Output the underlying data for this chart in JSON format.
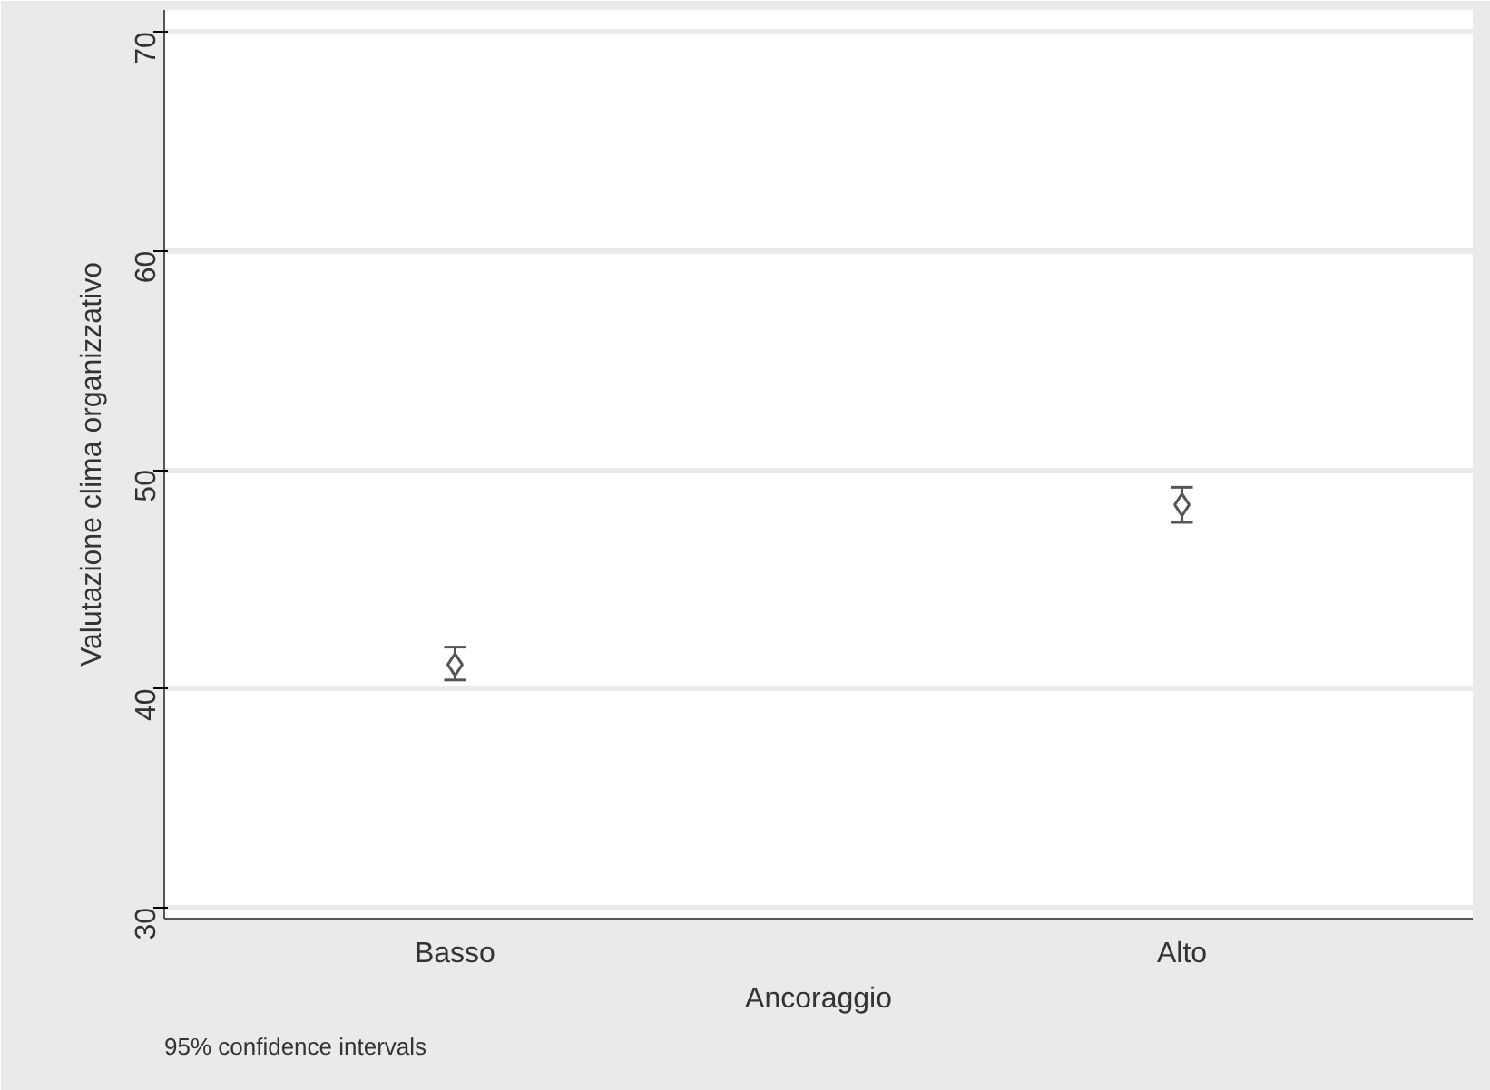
{
  "chart_data": {
    "type": "scatter",
    "xlabel": "Ancoraggio",
    "ylabel": "Valutazione clima organizzativo",
    "categories": [
      "Basso",
      "Alto"
    ],
    "series": [
      {
        "color": "#555555",
        "values": [
          41.1,
          48.4
        ],
        "errors": [
          [
            40.4,
            41.9
          ],
          [
            47.6,
            49.2
          ]
        ]
      }
    ],
    "ylim": [
      29.5,
      71
    ],
    "yticks": [
      30,
      40,
      50,
      60,
      70
    ],
    "grid": "y",
    "marker": "diamond",
    "annotations": [
      "95% confidence intervals"
    ]
  }
}
